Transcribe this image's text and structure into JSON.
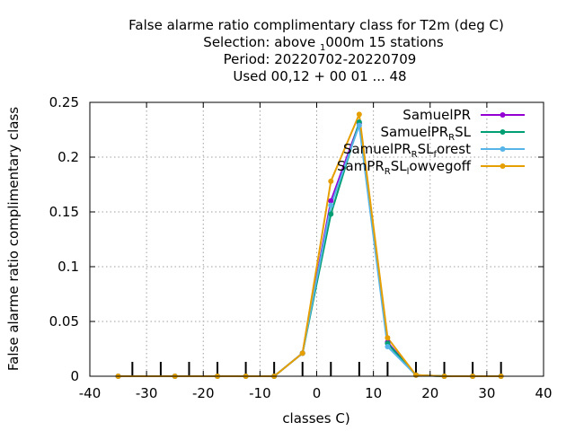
{
  "title": {
    "line1": "False alarme ratio complimentary class  for T2m (deg C)",
    "line2_pre": "Selection: above ",
    "line2_sub": "1",
    "line2_post": "000m     15 stations",
    "line3": "Period: 20220702-20220709",
    "line4": "Used  00,12  + 00 01 ... 48"
  },
  "chart_data": {
    "type": "line",
    "title": "False alarme ratio complimentary class  for T2m (deg C)",
    "xlabel": "classes C)",
    "ylabel": "False alarme ratio complimentary class",
    "xlim": [
      -40,
      40
    ],
    "ylim": [
      0,
      0.25
    ],
    "x_ticks": [
      -40,
      -30,
      -20,
      -10,
      0,
      10,
      20,
      30,
      40
    ],
    "y_ticks": [
      0,
      0.05,
      0.1,
      0.15,
      0.2,
      0.25
    ],
    "y_tick_labels": [
      "0",
      "0.05",
      "0.1",
      "0.15",
      "0.2",
      "0.25"
    ],
    "grid": true,
    "legend_position": "top-right",
    "class_markers_x": [
      -32.5,
      -27.5,
      -22.5,
      -17.5,
      -12.5,
      -7.5,
      -2.5,
      2.5,
      7.5,
      12.5,
      17.5,
      22.5,
      27.5,
      32.5
    ],
    "x": [
      -35,
      -25,
      -17.5,
      -12.5,
      -7.5,
      -2.5,
      2.5,
      7.5,
      12.5,
      17.5,
      22.5,
      27.5,
      32.5
    ],
    "series": [
      {
        "name": "SamuelPR",
        "name_parts": [
          [
            "SamuelPR",
            ""
          ]
        ],
        "color": "#9400d3",
        "values": [
          0,
          0,
          0,
          0,
          0,
          0.021,
          0.16,
          0.231,
          0.031,
          0.001,
          0,
          0,
          0
        ]
      },
      {
        "name": "SamuelPR_RSL",
        "name_parts": [
          [
            "SamuelPR",
            ""
          ],
          [
            "R",
            "sub"
          ],
          [
            "SL",
            ""
          ]
        ],
        "color": "#009e73",
        "values": [
          0,
          0,
          0,
          0,
          0,
          0.021,
          0.148,
          0.232,
          0.03,
          0.001,
          0,
          0,
          0
        ]
      },
      {
        "name": "SamuelPR_RSL_forest",
        "name_parts": [
          [
            "SamuelPR",
            ""
          ],
          [
            "R",
            "sub"
          ],
          [
            "SL",
            ""
          ],
          [
            "f",
            "sub"
          ],
          [
            "orest",
            ""
          ]
        ],
        "color": "#56b4e9",
        "values": [
          0,
          0,
          0,
          0,
          0,
          0.021,
          0.156,
          0.229,
          0.027,
          0.001,
          0,
          0,
          0
        ]
      },
      {
        "name": "SamPR_RSL_lowvegoff",
        "name_parts": [
          [
            "SamPR",
            ""
          ],
          [
            "R",
            "sub"
          ],
          [
            "SL",
            ""
          ],
          [
            "l",
            "sub"
          ],
          [
            "owvegoff",
            ""
          ]
        ],
        "color": "#e69f00",
        "values": [
          0,
          0,
          0,
          0,
          0,
          0.021,
          0.178,
          0.239,
          0.035,
          0.001,
          0,
          0,
          0
        ]
      }
    ]
  }
}
